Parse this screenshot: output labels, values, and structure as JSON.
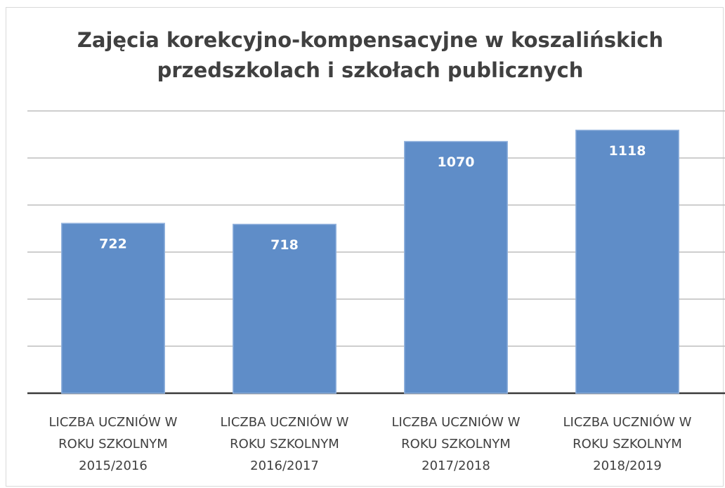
{
  "chart_data": {
    "type": "bar",
    "title": "Zajęcia korekcyjno-kompensacyjne w koszalińskich przedszkolach i szkołach publicznych",
    "categories": [
      "LICZBA UCZNIÓW W ROKU SZKOLNYM 2015/2016",
      "LICZBA UCZNIÓW W ROKU SZKOLNYM 2016/2017",
      "LICZBA UCZNIÓW W ROKU SZKOLNYM 2017/2018",
      "LICZBA UCZNIÓW W ROKU SZKOLNYM 2018/2019"
    ],
    "values": [
      722,
      718,
      1070,
      1118
    ],
    "color": "#5f8dc8",
    "ylim": [
      0,
      1200
    ],
    "yticks": [
      0,
      200,
      400,
      600,
      800,
      1000,
      1200
    ],
    "grid": true
  }
}
